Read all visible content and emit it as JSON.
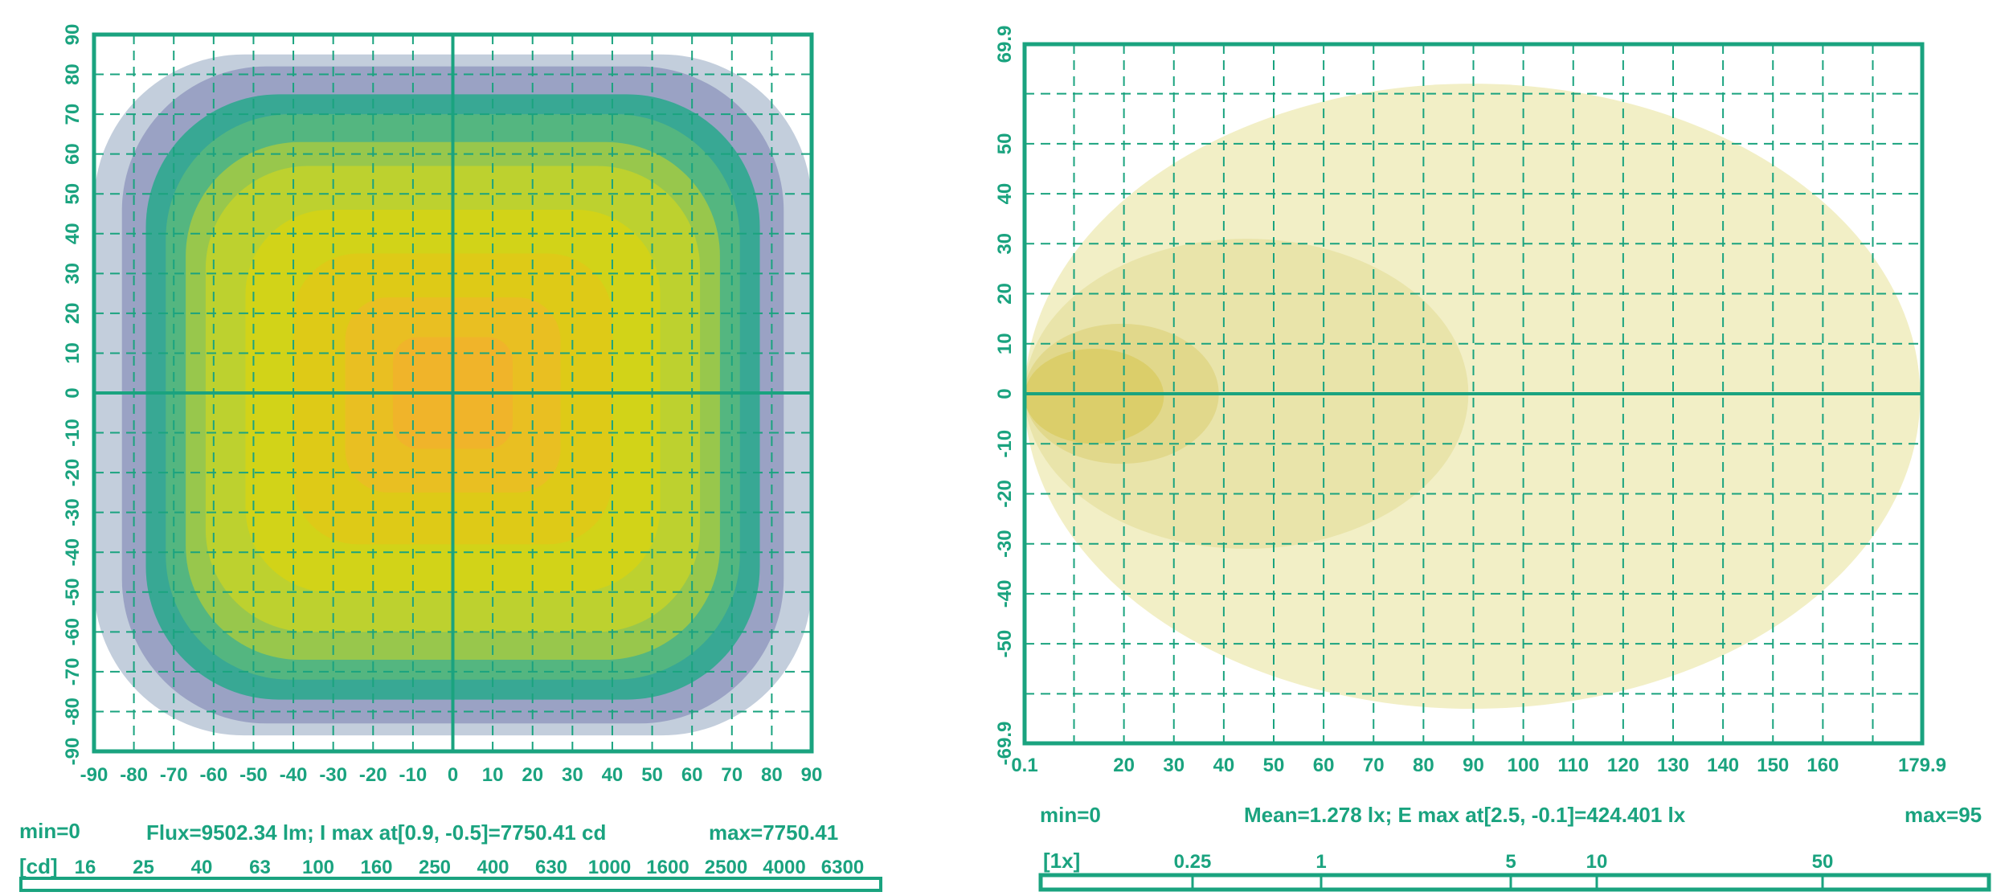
{
  "colors": {
    "accent": "#1aa37f",
    "outer_band": "#b8c6d6",
    "violet_band": "#7f86b4",
    "teal_band": "#2da88f",
    "green_band": "#a9cc3f",
    "yellow_band": "#d6d414",
    "orange_core": "#f1b32b",
    "illum_light": "#f2efc6",
    "illum_mid": "#e8e2a4",
    "illum_dark": "#d9cc64"
  },
  "chart_data": [
    {
      "type": "heatmap",
      "title": "",
      "x_ticks": [
        "-90",
        "-80",
        "-70",
        "-60",
        "-50",
        "-40",
        "-30",
        "-20",
        "-10",
        "0",
        "10",
        "20",
        "30",
        "40",
        "50",
        "60",
        "70",
        "80",
        "90"
      ],
      "y_ticks": [
        "90",
        "80",
        "70",
        "60",
        "50",
        "40",
        "30",
        "20",
        "10",
        "0",
        "-10",
        "-20",
        "-30",
        "-40",
        "-50",
        "-60",
        "-70",
        "-80",
        "-90"
      ],
      "xlim": [
        -90,
        90
      ],
      "ylim": [
        -90,
        90
      ],
      "grid": true,
      "info": {
        "min": "min=0",
        "summary": "Flux=9502.34 lm; I max  at[0.9, -0.5]=7750.41 cd",
        "max": "max=7750.41"
      },
      "scale": {
        "unit": "[cd]",
        "labels": [
          "16",
          "25",
          "40",
          "63",
          "100",
          "160",
          "250",
          "400",
          "630",
          "1000",
          "1600",
          "2500",
          "4000",
          "6300"
        ]
      },
      "contours": [
        {
          "level": "outer",
          "half_width": 90,
          "top": 85,
          "bottom": -86
        },
        {
          "level": "violet",
          "half_width": 83,
          "top": 82,
          "bottom": -83
        },
        {
          "level": "teal",
          "half_width": 77,
          "top": 75,
          "bottom": -77
        },
        {
          "level": "teal-green",
          "half_width": 72,
          "top": 70,
          "bottom": -72
        },
        {
          "level": "green",
          "half_width": 67,
          "top": 63,
          "bottom": -67
        },
        {
          "level": "yellow-green",
          "half_width": 62,
          "top": 57,
          "bottom": -60
        },
        {
          "level": "yellow",
          "half_width": 52,
          "top": 46,
          "bottom": -50
        },
        {
          "level": "yellow-orange",
          "half_width": 40,
          "top": 35,
          "bottom": -38
        },
        {
          "level": "orange",
          "half_width": 27,
          "top": 24,
          "bottom": -25
        },
        {
          "level": "orange-core",
          "half_width": 15,
          "top": 14,
          "bottom": -14
        }
      ]
    },
    {
      "type": "heatmap",
      "title": "",
      "x_ticks": [
        0.1,
        20,
        30,
        40,
        50,
        60,
        70,
        80,
        90,
        100,
        110,
        120,
        130,
        140,
        150,
        160,
        179.9
      ],
      "x_tick_labels": [
        "0.1",
        "20",
        "30",
        "40",
        "50",
        "60",
        "70",
        "80",
        "90",
        "100",
        "110",
        "120",
        "130",
        "140",
        "150",
        "160",
        "179.9"
      ],
      "y_ticks": [
        69.9,
        50,
        40,
        30,
        20,
        10,
        0,
        -10,
        -20,
        -30,
        -40,
        -50,
        -69.9
      ],
      "y_tick_labels": [
        "69.9",
        "50",
        "40",
        "30",
        "20",
        "10",
        "0",
        "-10",
        "-20",
        "-30",
        "-40",
        "-50",
        "-69.9"
      ],
      "xlim": [
        0.1,
        179.9
      ],
      "ylim": [
        -69.9,
        69.9
      ],
      "grid": true,
      "info": {
        "min": "min=0",
        "summary": "Mean=1.278 lx; E max  at[2.5, -0.1]=424.401 lx",
        "max": "max=95"
      },
      "scale": {
        "unit": "[1x]",
        "labels": [
          "0.25",
          "1",
          "5",
          "10",
          "50"
        ]
      },
      "contours": [
        {
          "level": "0.25",
          "x_start": 0.1,
          "x_end": 179.5,
          "top": 62,
          "bottom": -63
        },
        {
          "level": "1",
          "x_start": 0.1,
          "x_end": 89,
          "top": 31,
          "bottom": -31
        },
        {
          "level": "5",
          "x_start": 0.1,
          "x_end": 39,
          "top": 14,
          "bottom": -14
        },
        {
          "level": "10",
          "x_start": 0.1,
          "x_end": 28,
          "top": 9,
          "bottom": -10
        }
      ]
    }
  ]
}
